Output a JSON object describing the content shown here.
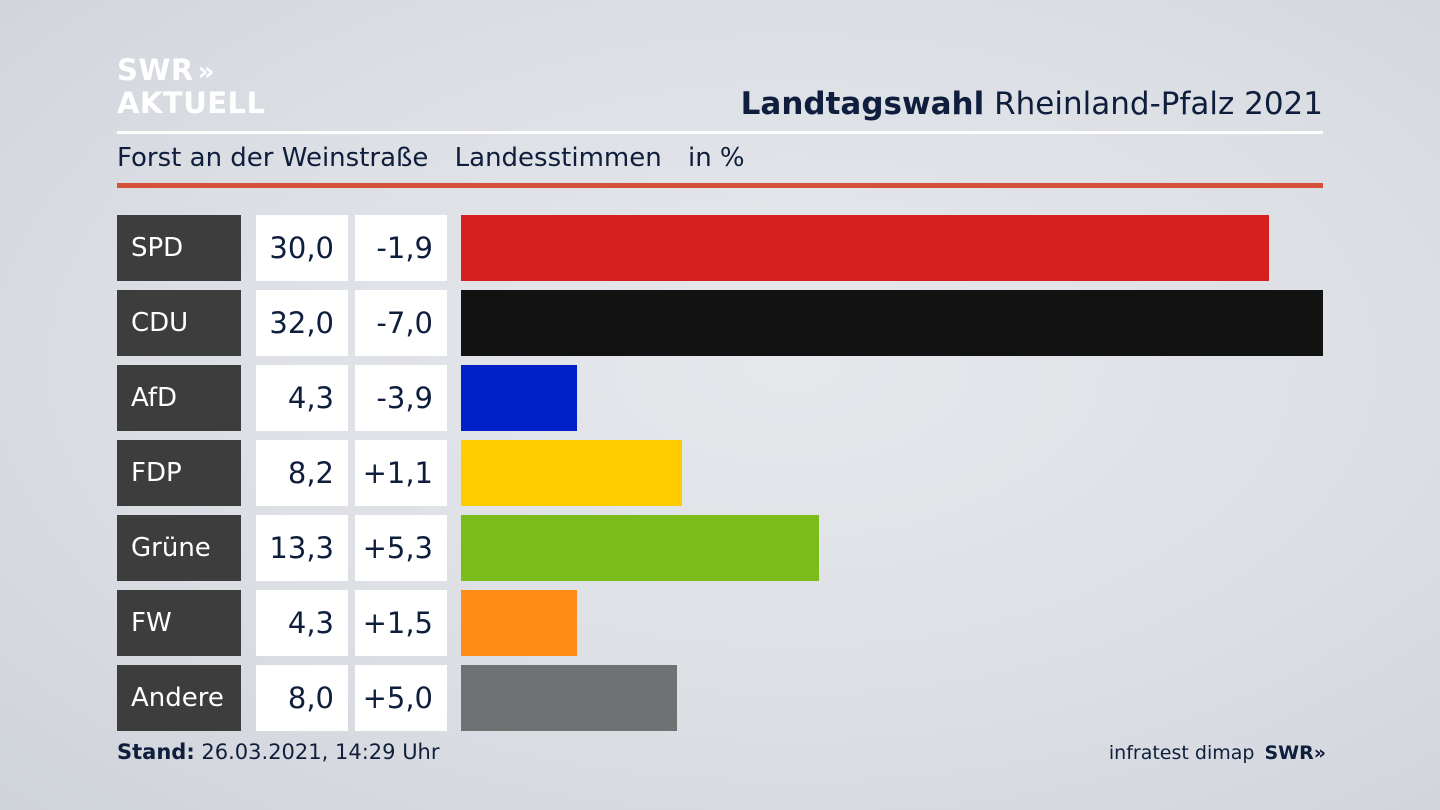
{
  "logo": {
    "line1": "SWR",
    "arrows": "»",
    "line2": "AKTUELL"
  },
  "header": {
    "title_bold": "Landtagswahl",
    "title_rest": "Rheinland-Pfalz 2021"
  },
  "subheader": {
    "location": "Forst an der Weinstraße",
    "type": "Landesstimmen",
    "unit": "in %"
  },
  "chart_data": {
    "type": "bar",
    "categories": [
      "SPD",
      "CDU",
      "AfD",
      "FDP",
      "Grüne",
      "FW",
      "Andere"
    ],
    "values": [
      30.0,
      32.0,
      4.3,
      8.2,
      13.3,
      4.3,
      8.0
    ],
    "value_labels": [
      "30,0",
      "32,0",
      "4,3",
      "8,2",
      "13,3",
      "4,3",
      "8,0"
    ],
    "diff_labels": [
      "-1,9",
      "-7,0",
      "-3,9",
      "+1,1",
      "+5,3",
      "+1,5",
      "+5,0"
    ],
    "colors": [
      "#d61f1f",
      "#121212",
      "#0021c8",
      "#ffcc00",
      "#7abd1a",
      "#ff8c17",
      "#707172"
    ],
    "xlim": [
      0,
      32
    ]
  },
  "footer": {
    "stand_label": "Stand:",
    "stand_value": "26.03.2021, 14:29 Uhr",
    "source": "infratest dimap",
    "brand": "SWR",
    "brand_arrows": "»"
  }
}
